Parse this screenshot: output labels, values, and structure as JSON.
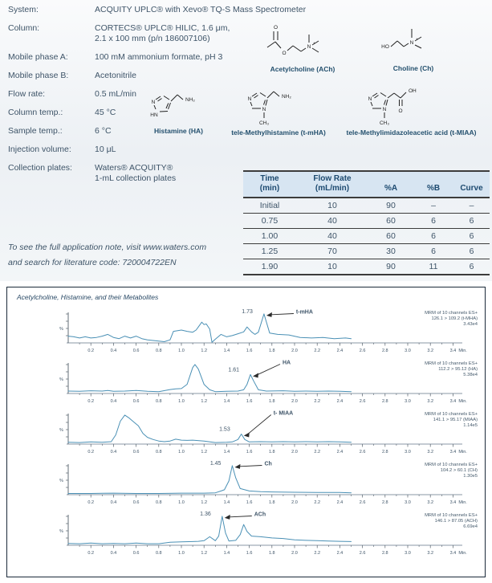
{
  "colors": {
    "trace_blue": "#4a90b5",
    "table_header_bg": "#d7e5f2",
    "text_navy": "#3e5468",
    "header_text": "#1d4a70",
    "panel_border": "#1b2a3a"
  },
  "params": {
    "rows": [
      {
        "label": "System:",
        "value": "ACQUITY UPLC® with Xevo® TQ-S Mass Spectrometer"
      },
      {
        "label": "Column:",
        "value": "CORTECS® UPLC® HILIC, 1.6 μm,\n2.1 x 100 mm (p/n 186007106)"
      },
      {
        "label": "Mobile phase A:",
        "value": "100 mM ammonium formate, pH 3"
      },
      {
        "label": "Mobile phase B:",
        "value": "Acetonitrile"
      },
      {
        "label": "Flow rate:",
        "value": "0.5 mL/min"
      },
      {
        "label": "Column temp.:",
        "value": "45 °C"
      },
      {
        "label": "Sample temp.:",
        "value": "6 °C"
      },
      {
        "label": "Injection volume:",
        "value": "10 μL"
      },
      {
        "label": "Collection plates:",
        "value": "Waters® ACQUITY®\n1-mL collection plates"
      }
    ]
  },
  "structures": [
    {
      "caption": "Acetylcholine (ACh)"
    },
    {
      "caption": "Choline (Ch)"
    },
    {
      "caption": "Histamine (HA)"
    },
    {
      "caption": "tele-Methylhistamine (t-mHA)"
    },
    {
      "caption": "tele-Methylimidazoleacetic acid (t-MIAA)"
    }
  ],
  "gradient_table": {
    "headers": [
      "Time\n(min)",
      "Flow Rate\n(mL/min)",
      "%A",
      "%B",
      "Curve"
    ],
    "rows": [
      [
        "Initial",
        "10",
        "90",
        "–",
        "–"
      ],
      [
        "0.75",
        "40",
        "60",
        "6",
        "6"
      ],
      [
        "1.00",
        "40",
        "60",
        "6",
        "6"
      ],
      [
        "1.25",
        "70",
        "30",
        "6",
        "6"
      ],
      [
        "1.90",
        "10",
        "90",
        "11",
        "6"
      ]
    ]
  },
  "note": {
    "line1": "To see the full application note, visit www.waters.com",
    "line2": "and search for literature code: 720004722EN"
  },
  "chromatogram": {
    "title": "Acetylcholine, Histamine, and their Metabolites",
    "axis": {
      "xmin": 0,
      "xmax": 3.4,
      "tick_step": 0.2,
      "x_tick_labels": [
        "0.2",
        "0.4",
        "0.6",
        "0.8",
        "1.0",
        "1.2",
        "1.4",
        "1.6",
        "1.8",
        "2.0",
        "2.2",
        "2.4",
        "2.6",
        "2.8",
        "3.0",
        "3.2",
        "3.4"
      ],
      "unit": "Min.",
      "ylabel": "%"
    }
  },
  "chart_data": {
    "type": "line",
    "xlabel": "Min.",
    "ylabel": "%",
    "xlim": [
      0,
      3.4
    ],
    "traces": [
      {
        "id": "t-mHA",
        "annotation": [
          "MRM of 10 channels ES+",
          "126.1 > 109.2 (t-MHA)",
          "3.43e4"
        ],
        "peak": {
          "rt": 1.73,
          "rt_label": "1.73",
          "analyte": "t-mHA",
          "v": 0.95
        },
        "points": [
          [
            0,
            0.22
          ],
          [
            0.05,
            0.2
          ],
          [
            0.1,
            0.16
          ],
          [
            0.15,
            0.2
          ],
          [
            0.2,
            0.16
          ],
          [
            0.25,
            0.18
          ],
          [
            0.3,
            0.22
          ],
          [
            0.35,
            0.28
          ],
          [
            0.4,
            0.18
          ],
          [
            0.45,
            0.14
          ],
          [
            0.5,
            0.22
          ],
          [
            0.55,
            0.16
          ],
          [
            0.6,
            0.22
          ],
          [
            0.65,
            0.14
          ],
          [
            0.7,
            0.1
          ],
          [
            0.75,
            0.08
          ],
          [
            0.8,
            0.06
          ],
          [
            0.85,
            0.04
          ],
          [
            0.9,
            0.1
          ],
          [
            0.93,
            0.38
          ],
          [
            1.0,
            0.42
          ],
          [
            1.05,
            0.38
          ],
          [
            1.1,
            0.35
          ],
          [
            1.13,
            0.42
          ],
          [
            1.15,
            0.52
          ],
          [
            1.18,
            0.68
          ],
          [
            1.2,
            0.6
          ],
          [
            1.22,
            0.62
          ],
          [
            1.25,
            0.45
          ],
          [
            1.27,
            0.02
          ],
          [
            1.3,
            0.12
          ],
          [
            1.35,
            0.28
          ],
          [
            1.4,
            0.2
          ],
          [
            1.45,
            0.24
          ],
          [
            1.5,
            0.3
          ],
          [
            1.55,
            0.36
          ],
          [
            1.58,
            0.52
          ],
          [
            1.62,
            0.36
          ],
          [
            1.65,
            0.28
          ],
          [
            1.68,
            0.35
          ],
          [
            1.73,
            0.95
          ],
          [
            1.78,
            0.32
          ],
          [
            1.85,
            0.28
          ],
          [
            1.95,
            0.26
          ],
          [
            2.05,
            0.18
          ],
          [
            2.15,
            0.16
          ],
          [
            2.25,
            0.18
          ],
          [
            2.35,
            0.14
          ],
          [
            2.45,
            0.16
          ],
          [
            2.5,
            0.14
          ]
        ]
      },
      {
        "id": "HA",
        "annotation": [
          "MRM of 10 channels ES+",
          "112.2 > 95.12 (HA)",
          "5.38e4"
        ],
        "peak": {
          "rt": 1.61,
          "rt_label": "1.61",
          "analyte": "HA",
          "v": 0.62
        },
        "points": [
          [
            0,
            0.08
          ],
          [
            0.1,
            0.07
          ],
          [
            0.2,
            0.09
          ],
          [
            0.3,
            0.08
          ],
          [
            0.35,
            0.1
          ],
          [
            0.4,
            0.07
          ],
          [
            0.5,
            0.08
          ],
          [
            0.6,
            0.1
          ],
          [
            0.7,
            0.07
          ],
          [
            0.8,
            0.06
          ],
          [
            0.9,
            0.13
          ],
          [
            0.95,
            0.15
          ],
          [
            1.0,
            0.16
          ],
          [
            1.05,
            0.3
          ],
          [
            1.1,
            0.85
          ],
          [
            1.12,
            0.95
          ],
          [
            1.15,
            0.8
          ],
          [
            1.2,
            0.3
          ],
          [
            1.25,
            0.12
          ],
          [
            1.3,
            0.06
          ],
          [
            1.4,
            0.07
          ],
          [
            1.5,
            0.08
          ],
          [
            1.55,
            0.12
          ],
          [
            1.58,
            0.3
          ],
          [
            1.61,
            0.62
          ],
          [
            1.64,
            0.4
          ],
          [
            1.68,
            0.12
          ],
          [
            1.75,
            0.08
          ],
          [
            1.9,
            0.09
          ],
          [
            2.0,
            0.07
          ],
          [
            2.1,
            0.08
          ],
          [
            2.2,
            0.07
          ],
          [
            2.3,
            0.08
          ],
          [
            2.4,
            0.07
          ],
          [
            2.5,
            0.06
          ]
        ]
      },
      {
        "id": "t-MIAA",
        "annotation": [
          "MRM of 10 channels ES+",
          "141.1 > 95.17 (MIAA)",
          "1.14e5"
        ],
        "peak": {
          "rt": 1.53,
          "rt_label": "1.53",
          "analyte": "t- MIAA",
          "v": 0.33
        },
        "points": [
          [
            0,
            0.06
          ],
          [
            0.1,
            0.05
          ],
          [
            0.2,
            0.07
          ],
          [
            0.3,
            0.06
          ],
          [
            0.38,
            0.08
          ],
          [
            0.42,
            0.3
          ],
          [
            0.46,
            0.75
          ],
          [
            0.5,
            0.95
          ],
          [
            0.54,
            0.85
          ],
          [
            0.58,
            0.72
          ],
          [
            0.62,
            0.6
          ],
          [
            0.66,
            0.35
          ],
          [
            0.7,
            0.22
          ],
          [
            0.75,
            0.15
          ],
          [
            0.8,
            0.1
          ],
          [
            0.85,
            0.08
          ],
          [
            0.9,
            0.1
          ],
          [
            0.95,
            0.16
          ],
          [
            1.0,
            0.13
          ],
          [
            1.05,
            0.12
          ],
          [
            1.1,
            0.13
          ],
          [
            1.2,
            0.1
          ],
          [
            1.3,
            0.05
          ],
          [
            1.4,
            0.06
          ],
          [
            1.45,
            0.07
          ],
          [
            1.5,
            0.15
          ],
          [
            1.53,
            0.33
          ],
          [
            1.56,
            0.15
          ],
          [
            1.6,
            0.07
          ],
          [
            1.7,
            0.08
          ],
          [
            1.8,
            0.07
          ],
          [
            1.9,
            0.08
          ],
          [
            2.0,
            0.07
          ],
          [
            2.1,
            0.08
          ],
          [
            2.2,
            0.07
          ],
          [
            2.3,
            0.08
          ],
          [
            2.4,
            0.07
          ],
          [
            2.5,
            0.06
          ]
        ]
      },
      {
        "id": "Ch",
        "annotation": [
          "MRM of 10 channels ES+",
          "104.2 > 60.1 (CH)",
          "1.30e5"
        ],
        "peak": {
          "rt": 1.45,
          "rt_label": "1.45",
          "analyte": "Ch",
          "v": 0.95
        },
        "points": [
          [
            0,
            0.04
          ],
          [
            0.2,
            0.04
          ],
          [
            0.4,
            0.05
          ],
          [
            0.6,
            0.04
          ],
          [
            0.8,
            0.04
          ],
          [
            1.0,
            0.05
          ],
          [
            1.2,
            0.05
          ],
          [
            1.3,
            0.06
          ],
          [
            1.35,
            0.12
          ],
          [
            1.38,
            0.16
          ],
          [
            1.42,
            0.45
          ],
          [
            1.45,
            0.95
          ],
          [
            1.48,
            0.55
          ],
          [
            1.52,
            0.2
          ],
          [
            1.6,
            0.12
          ],
          [
            1.7,
            0.1
          ],
          [
            1.8,
            0.09
          ],
          [
            2.0,
            0.08
          ],
          [
            2.2,
            0.07
          ],
          [
            2.4,
            0.07
          ],
          [
            2.5,
            0.06
          ]
        ]
      },
      {
        "id": "ACh",
        "annotation": [
          "MRM of 10 channels ES+",
          "146.1 > 87.05 (ACH)",
          "6.69e4"
        ],
        "peak": {
          "rt": 1.36,
          "rt_label": "1.36",
          "analyte": "ACh",
          "v": 0.95
        },
        "points": [
          [
            0,
            0.06
          ],
          [
            0.1,
            0.05
          ],
          [
            0.2,
            0.07
          ],
          [
            0.3,
            0.05
          ],
          [
            0.4,
            0.06
          ],
          [
            0.5,
            0.05
          ],
          [
            0.6,
            0.07
          ],
          [
            0.7,
            0.05
          ],
          [
            0.8,
            0.05
          ],
          [
            0.9,
            0.1
          ],
          [
            1.0,
            0.11
          ],
          [
            1.1,
            0.12
          ],
          [
            1.15,
            0.13
          ],
          [
            1.2,
            0.15
          ],
          [
            1.25,
            0.28
          ],
          [
            1.3,
            0.15
          ],
          [
            1.33,
            0.3
          ],
          [
            1.36,
            0.95
          ],
          [
            1.39,
            0.4
          ],
          [
            1.42,
            0.14
          ],
          [
            1.48,
            0.16
          ],
          [
            1.52,
            0.35
          ],
          [
            1.55,
            0.68
          ],
          [
            1.58,
            0.45
          ],
          [
            1.62,
            0.3
          ],
          [
            1.7,
            0.28
          ],
          [
            1.8,
            0.24
          ],
          [
            1.9,
            0.22
          ],
          [
            2.0,
            0.18
          ],
          [
            2.1,
            0.16
          ],
          [
            2.2,
            0.15
          ],
          [
            2.3,
            0.14
          ],
          [
            2.4,
            0.13
          ],
          [
            2.5,
            0.12
          ]
        ]
      }
    ]
  }
}
